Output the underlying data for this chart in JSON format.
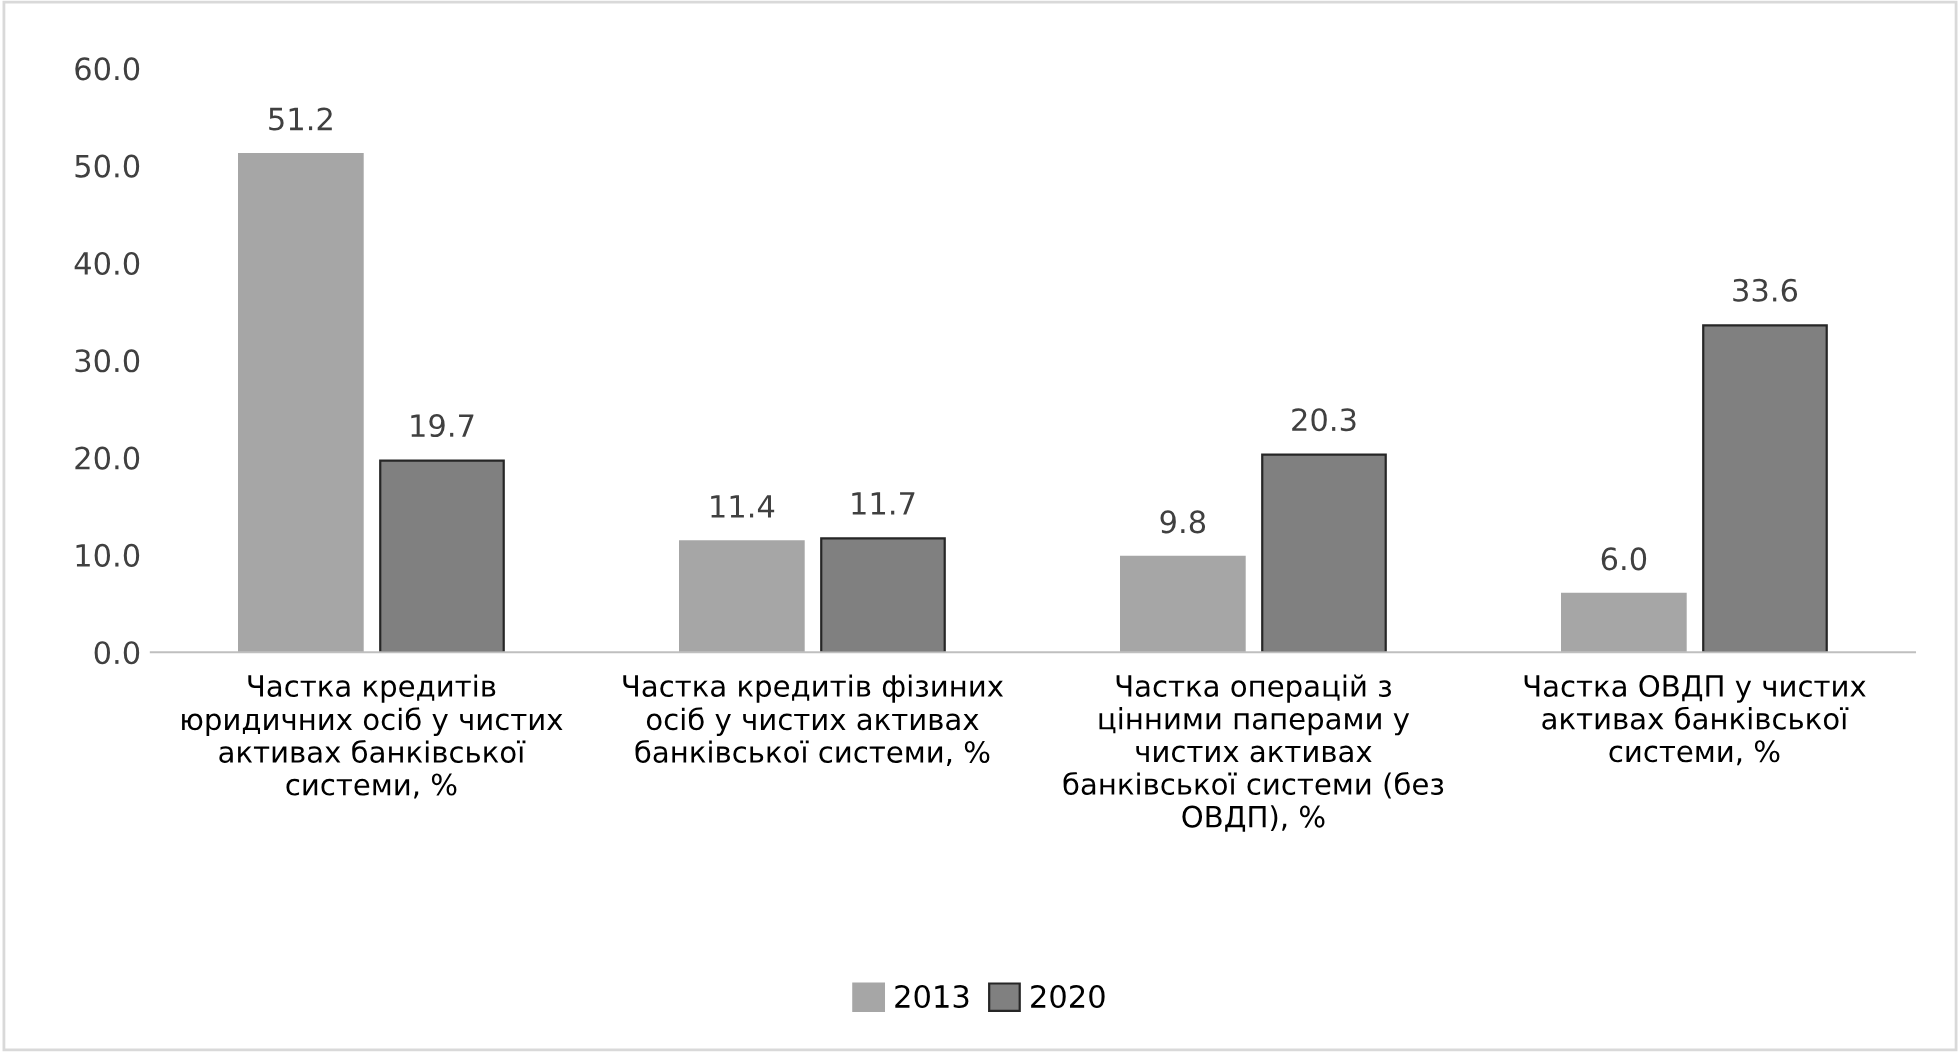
{
  "chart_data": {
    "type": "bar",
    "categories": [
      "Частка кредитів\nюридичних осіб у чистих\nактивах банківської\nсистеми, %",
      "Частка кредитів фізиних\nосіб у чистих активах\nбанківської системи, %",
      "Частка операцій з\nцінними паперами у\nчистих активах\nбанківської системи (без\nОВДП), %",
      "Частка ОВДП у чистих\nактивах банківської\nсистеми, %"
    ],
    "series": [
      {
        "name": "2013",
        "color": "#a6a6a6",
        "values": [
          51.2,
          11.4,
          9.8,
          6.0
        ],
        "value_labels": [
          "51.2",
          "11.4",
          "9.8",
          "6.0"
        ]
      },
      {
        "name": "2020",
        "color": "#808080",
        "values": [
          19.7,
          11.7,
          20.3,
          33.6
        ],
        "value_labels": [
          "19.7",
          "11.7",
          "20.3",
          "33.6"
        ]
      }
    ],
    "ylim": [
      0,
      60
    ],
    "yticks": [
      {
        "value": 0,
        "label": "0.0"
      },
      {
        "value": 10,
        "label": "10.0"
      },
      {
        "value": 20,
        "label": "20.0"
      },
      {
        "value": 30,
        "label": "30.0"
      },
      {
        "value": 40,
        "label": "40.0"
      },
      {
        "value": 50,
        "label": "50.0"
      },
      {
        "value": 60,
        "label": "60.0"
      }
    ],
    "grid": false,
    "legend": "bottom"
  }
}
